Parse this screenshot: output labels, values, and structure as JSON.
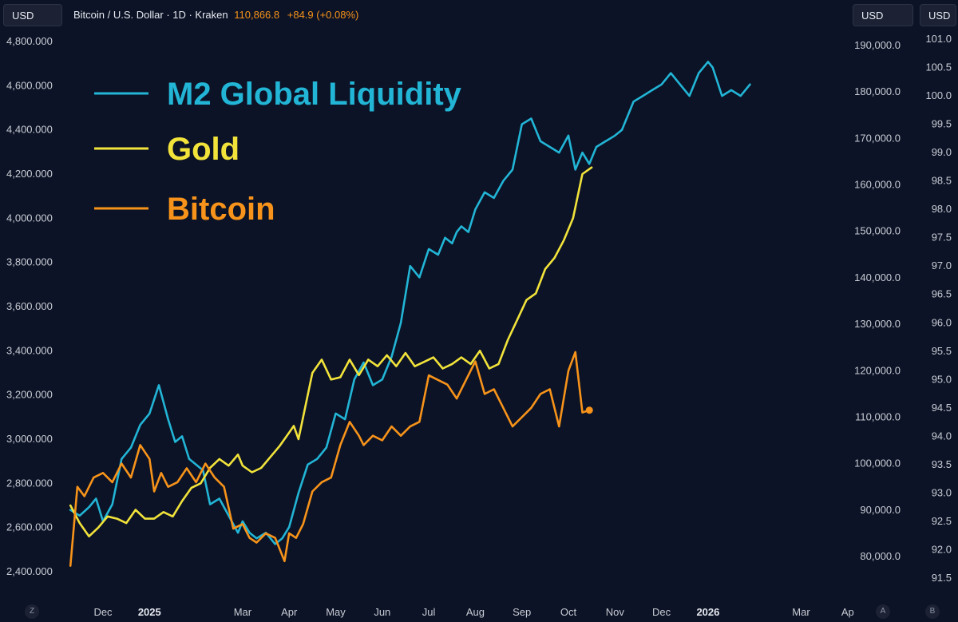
{
  "header": {
    "left_unit": "USD",
    "symbol_text": "Bitcoin / U.S. Dollar · 1D · Kraken",
    "price": "110,866.8",
    "change": "+84.9 (+0.08%)",
    "right_unit_1": "USD",
    "right_unit_2": "USD"
  },
  "corner_buttons": {
    "left": "Z",
    "mid": "A",
    "right": "B"
  },
  "chart_data": {
    "type": "line",
    "title": "Bitcoin / U.S. Dollar · 1D · Kraken",
    "x_labels": [
      {
        "label": "Dec",
        "pos": 0.0,
        "bold": false
      },
      {
        "label": "2025",
        "pos": 1.0,
        "bold": true
      },
      {
        "label": "Mar",
        "pos": 3.0,
        "bold": false
      },
      {
        "label": "Apr",
        "pos": 4.0,
        "bold": false
      },
      {
        "label": "May",
        "pos": 5.0,
        "bold": false
      },
      {
        "label": "Jun",
        "pos": 6.0,
        "bold": false
      },
      {
        "label": "Jul",
        "pos": 7.0,
        "bold": false
      },
      {
        "label": "Aug",
        "pos": 8.0,
        "bold": false
      },
      {
        "label": "Sep",
        "pos": 9.0,
        "bold": false
      },
      {
        "label": "Oct",
        "pos": 10.0,
        "bold": false
      },
      {
        "label": "Nov",
        "pos": 11.0,
        "bold": false
      },
      {
        "label": "Dec",
        "pos": 12.0,
        "bold": false
      },
      {
        "label": "2026",
        "pos": 13.0,
        "bold": true
      },
      {
        "label": "Mar",
        "pos": 15.0,
        "bold": false
      },
      {
        "label": "Ap",
        "pos": 16.0,
        "bold": false
      }
    ],
    "axes": {
      "gold": {
        "side": "left",
        "ticks": [
          "4,800.000",
          "4,600.000",
          "4,400.000",
          "4,200.000",
          "4,000.000",
          "3,800.000",
          "3,600.000",
          "3,400.000",
          "3,200.000",
          "3,000.000",
          "2,800.000",
          "2,600.000",
          "2,400.000"
        ],
        "range": [
          2400,
          4800
        ]
      },
      "bitcoin": {
        "side": "right-1",
        "ticks": [
          "190,000.0",
          "180,000.0",
          "170,000.0",
          "160,000.0",
          "150,000.0",
          "140,000.0",
          "130,000.0",
          "120,000.0",
          "110,000.0",
          "100,000.0",
          "90,000.0",
          "80,000.0"
        ],
        "range": [
          80000,
          190000
        ]
      },
      "m2": {
        "side": "right-2",
        "ticks": [
          "101.0",
          "100.5",
          "100.0",
          "99.5",
          "99.0",
          "98.5",
          "98.0",
          "97.5",
          "97.0",
          "96.5",
          "96.0",
          "95.5",
          "95.0",
          "94.5",
          "94.0",
          "93.5",
          "93.0",
          "92.5",
          "92.0",
          "91.5"
        ],
        "range": [
          91.5,
          101.0
        ]
      }
    },
    "legend": [
      {
        "name": "M2 Global Liquidity",
        "color": "#22b5d6"
      },
      {
        "name": "Gold",
        "color": "#f2e33b"
      },
      {
        "name": "Bitcoin",
        "color": "#f7931a"
      }
    ],
    "series": [
      {
        "name": "M2 Global Liquidity",
        "axis": "m2",
        "color": "#22b5d6",
        "x": [
          -0.7,
          -0.5,
          -0.3,
          -0.15,
          0.0,
          0.2,
          0.4,
          0.6,
          0.8,
          1.0,
          1.2,
          1.4,
          1.55,
          1.7,
          1.85,
          2.0,
          2.15,
          2.3,
          2.5,
          2.7,
          2.9,
          3.0,
          3.15,
          3.3,
          3.5,
          3.7,
          3.85,
          4.0,
          4.2,
          4.4,
          4.6,
          4.8,
          5.0,
          5.2,
          5.4,
          5.6,
          5.8,
          6.0,
          6.2,
          6.4,
          6.6,
          6.8,
          7.0,
          7.2,
          7.35,
          7.5,
          7.6,
          7.7,
          7.85,
          8.0,
          8.2,
          8.4,
          8.6,
          8.8,
          9.0,
          9.2,
          9.4,
          9.6,
          9.8,
          10.0,
          10.15,
          10.3,
          10.45,
          10.6,
          10.8,
          11.0,
          11.15,
          11.3,
          11.4,
          11.6,
          11.8,
          12.0,
          12.2,
          12.4,
          12.6,
          12.8,
          13.0,
          13.1,
          13.3,
          13.5,
          13.7,
          13.9
        ],
        "values": [
          92.7,
          92.6,
          92.75,
          92.9,
          92.5,
          92.8,
          93.6,
          93.8,
          94.2,
          94.4,
          94.9,
          94.3,
          93.9,
          94.0,
          93.6,
          93.5,
          93.4,
          92.8,
          92.9,
          92.6,
          92.3,
          92.5,
          92.3,
          92.2,
          92.3,
          92.1,
          92.2,
          92.4,
          93.0,
          93.5,
          93.6,
          93.8,
          94.4,
          94.3,
          95.0,
          95.3,
          94.9,
          95.0,
          95.4,
          96.0,
          97.0,
          96.8,
          97.3,
          97.2,
          97.5,
          97.4,
          97.6,
          97.7,
          97.6,
          98.0,
          98.3,
          98.2,
          98.5,
          98.7,
          99.5,
          99.6,
          99.2,
          99.1,
          99.0,
          99.3,
          98.7,
          99.0,
          98.8,
          99.1,
          99.2,
          99.3,
          99.4,
          99.7,
          99.9,
          100.0,
          100.1,
          100.2,
          100.4,
          100.2,
          100.0,
          100.4,
          100.6,
          100.5,
          100.0,
          100.1,
          100.0,
          100.2
        ]
      },
      {
        "name": "Gold",
        "axis": "gold",
        "color": "#f2e33b",
        "x": [
          -0.7,
          -0.5,
          -0.3,
          -0.1,
          0.1,
          0.3,
          0.5,
          0.7,
          0.9,
          1.1,
          1.3,
          1.5,
          1.7,
          1.9,
          2.1,
          2.3,
          2.5,
          2.7,
          2.9,
          3.0,
          3.2,
          3.4,
          3.6,
          3.8,
          4.0,
          4.1,
          4.2,
          4.35,
          4.5,
          4.7,
          4.9,
          5.1,
          5.3,
          5.5,
          5.7,
          5.9,
          6.1,
          6.3,
          6.5,
          6.7,
          6.9,
          7.1,
          7.3,
          7.5,
          7.7,
          7.9,
          8.1,
          8.3,
          8.5,
          8.7,
          8.9,
          9.1,
          9.3,
          9.5,
          9.7,
          9.9,
          10.1,
          10.3,
          10.5
        ],
        "values": [
          2700,
          2620,
          2560,
          2600,
          2650,
          2640,
          2620,
          2680,
          2640,
          2640,
          2670,
          2650,
          2720,
          2780,
          2800,
          2870,
          2910,
          2880,
          2930,
          2880,
          2850,
          2870,
          2920,
          2970,
          3030,
          3060,
          3000,
          3150,
          3300,
          3360,
          3270,
          3280,
          3360,
          3290,
          3360,
          3330,
          3380,
          3330,
          3390,
          3330,
          3350,
          3370,
          3320,
          3340,
          3370,
          3340,
          3400,
          3320,
          3340,
          3450,
          3540,
          3630,
          3660,
          3770,
          3820,
          3900,
          4000,
          4200,
          4230
        ]
      },
      {
        "name": "Bitcoin",
        "axis": "bitcoin",
        "color": "#f7931a",
        "x": [
          -0.7,
          -0.55,
          -0.4,
          -0.2,
          0.0,
          0.2,
          0.4,
          0.6,
          0.8,
          1.0,
          1.1,
          1.25,
          1.4,
          1.6,
          1.8,
          2.0,
          2.2,
          2.4,
          2.6,
          2.8,
          3.0,
          3.15,
          3.3,
          3.5,
          3.7,
          3.9,
          4.0,
          4.15,
          4.3,
          4.5,
          4.7,
          4.9,
          5.1,
          5.3,
          5.5,
          5.6,
          5.8,
          6.0,
          6.2,
          6.4,
          6.6,
          6.8,
          7.0,
          7.2,
          7.4,
          7.6,
          7.8,
          8.0,
          8.2,
          8.4,
          8.6,
          8.8,
          9.0,
          9.2,
          9.4,
          9.6,
          9.8,
          10.0,
          10.15,
          10.3,
          10.45
        ],
        "values": [
          78000,
          95000,
          93000,
          97000,
          98000,
          96000,
          100000,
          97000,
          104000,
          101000,
          94000,
          98000,
          95000,
          96000,
          99000,
          96000,
          100000,
          97000,
          95000,
          86000,
          87000,
          84000,
          83000,
          85000,
          84000,
          79000,
          85000,
          84000,
          87000,
          94000,
          96000,
          97000,
          104000,
          109000,
          106000,
          104000,
          106000,
          105000,
          108000,
          106000,
          108000,
          109000,
          119000,
          118000,
          117000,
          114000,
          118000,
          122000,
          115000,
          116000,
          112000,
          108000,
          110000,
          112000,
          115000,
          116000,
          108000,
          120000,
          124000,
          111000,
          111500
        ]
      }
    ]
  }
}
